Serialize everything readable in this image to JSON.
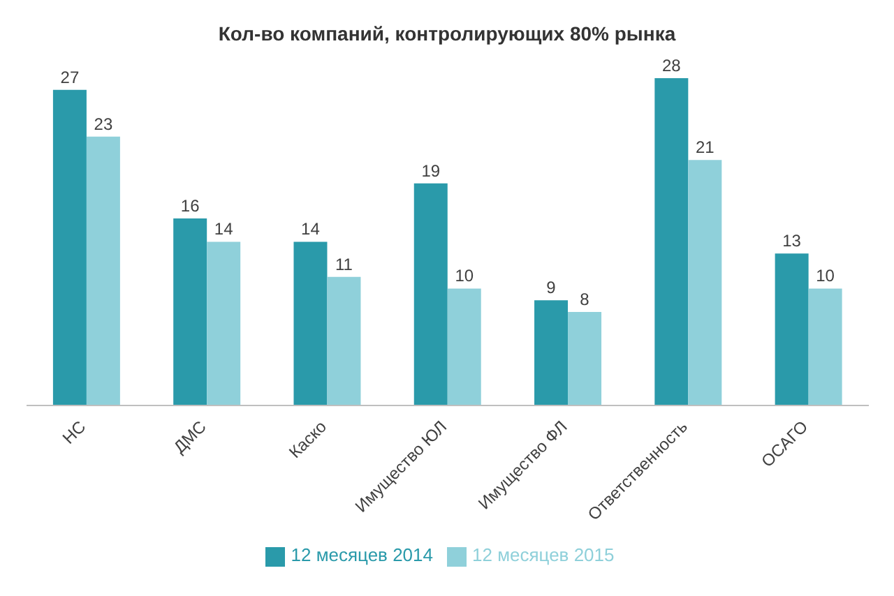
{
  "chart_data": {
    "type": "bar",
    "title": "Кол-во компаний, контролирующих 80% рынка",
    "categories": [
      "НС",
      "ДМС",
      "Каско",
      "Имущество ЮЛ",
      "Имущество ФЛ",
      "Ответственность",
      "ОСАГО"
    ],
    "series": [
      {
        "name": "12 месяцев 2014",
        "color": "#2a9aaa",
        "values": [
          27,
          16,
          14,
          19,
          9,
          28,
          13
        ]
      },
      {
        "name": "12 месяцев 2015",
        "color": "#8fd0da",
        "values": [
          23,
          14,
          11,
          10,
          8,
          21,
          10
        ]
      }
    ],
    "tick_labels": "x",
    "legend": "bottom",
    "data_labels": true
  }
}
